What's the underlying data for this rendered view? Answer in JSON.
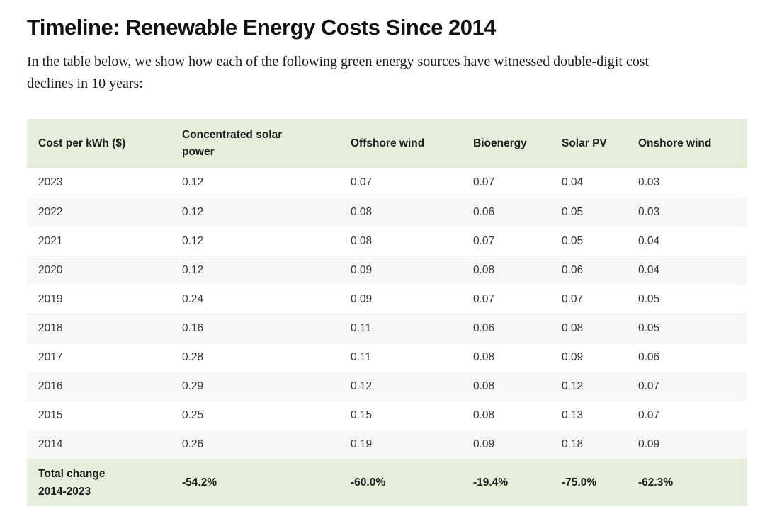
{
  "page": {
    "title": "Timeline: Renewable Energy Costs Since 2014",
    "intro": "In the table below, we show how each of the following green energy sources have witnessed double-digit cost declines in 10 years:"
  },
  "chart_data": {
    "type": "table",
    "title": "Timeline: Renewable Energy Costs Since 2014",
    "columns": [
      "Cost per kWh ($)",
      "Concentrated solar power",
      "Offshore wind",
      "Bioenergy",
      "Solar PV",
      "Onshore wind"
    ],
    "rows": [
      [
        "2023",
        "0.12",
        "0.07",
        "0.07",
        "0.04",
        "0.03"
      ],
      [
        "2022",
        "0.12",
        "0.08",
        "0.06",
        "0.05",
        "0.03"
      ],
      [
        "2021",
        "0.12",
        "0.08",
        "0.07",
        "0.05",
        "0.04"
      ],
      [
        "2020",
        "0.12",
        "0.09",
        "0.08",
        "0.06",
        "0.04"
      ],
      [
        "2019",
        "0.24",
        "0.09",
        "0.07",
        "0.07",
        "0.05"
      ],
      [
        "2018",
        "0.16",
        "0.11",
        "0.06",
        "0.08",
        "0.05"
      ],
      [
        "2017",
        "0.28",
        "0.11",
        "0.08",
        "0.09",
        "0.06"
      ],
      [
        "2016",
        "0.29",
        "0.12",
        "0.08",
        "0.12",
        "0.07"
      ],
      [
        "2015",
        "0.25",
        "0.15",
        "0.08",
        "0.13",
        "0.07"
      ],
      [
        "2014",
        "0.26",
        "0.19",
        "0.09",
        "0.18",
        "0.09"
      ]
    ],
    "footer": {
      "label_lines": [
        "Total change",
        "2014-2023"
      ],
      "values": [
        "-54.2%",
        "-60.0%",
        "-19.4%",
        "-75.0%",
        "-62.3%"
      ]
    },
    "colors": {
      "header_background": "#e4eeda",
      "row_stripe": "#f7f7f7",
      "row_border": "#e4e4e4",
      "body_text": "#383838",
      "heading_text": "#1d1d1d"
    }
  }
}
